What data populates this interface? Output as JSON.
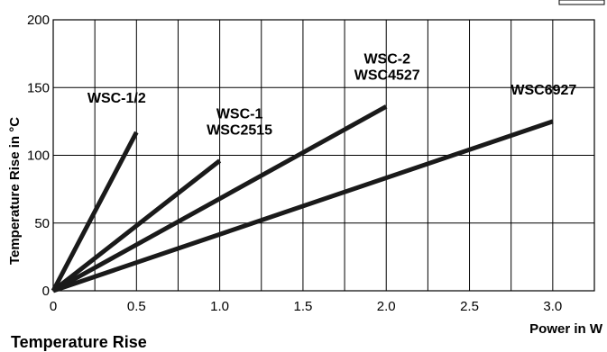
{
  "chart_data": {
    "type": "line",
    "title": "",
    "caption": "Temperature Rise",
    "xlabel": "Power in W",
    "ylabel": "Temperature Rise in °C",
    "xlim": [
      0,
      3.25
    ],
    "ylim": [
      0,
      200
    ],
    "x_ticks": [
      0,
      0.5,
      1.0,
      1.5,
      2.0,
      2.5,
      3.0
    ],
    "x_tick_labels": [
      "0",
      "0.5",
      "1.0",
      "1.5",
      "2.0",
      "2.5",
      "3.0"
    ],
    "y_ticks": [
      0,
      50,
      100,
      150,
      200
    ],
    "y_tick_labels": [
      "0",
      "50",
      "100",
      "150",
      "200"
    ],
    "x_minor_step": 0.25,
    "grid": true,
    "series": [
      {
        "name": "WSC-1/2",
        "label_lines": [
          "WSC-1/2"
        ],
        "x": [
          0,
          0.5
        ],
        "y": [
          0,
          117
        ]
      },
      {
        "name": "WSC-1 / WSC2515",
        "label_lines": [
          "WSC-1",
          "WSC2515"
        ],
        "x": [
          0,
          1.0
        ],
        "y": [
          0,
          96
        ]
      },
      {
        "name": "WSC-2 / WSC4527",
        "label_lines": [
          "WSC-2",
          "WSC4527"
        ],
        "x": [
          0,
          2.0
        ],
        "y": [
          0,
          136
        ]
      },
      {
        "name": "WSC6927",
        "label_lines": [
          "WSC6927"
        ],
        "x": [
          0,
          3.0
        ],
        "y": [
          0,
          125
        ]
      }
    ]
  }
}
